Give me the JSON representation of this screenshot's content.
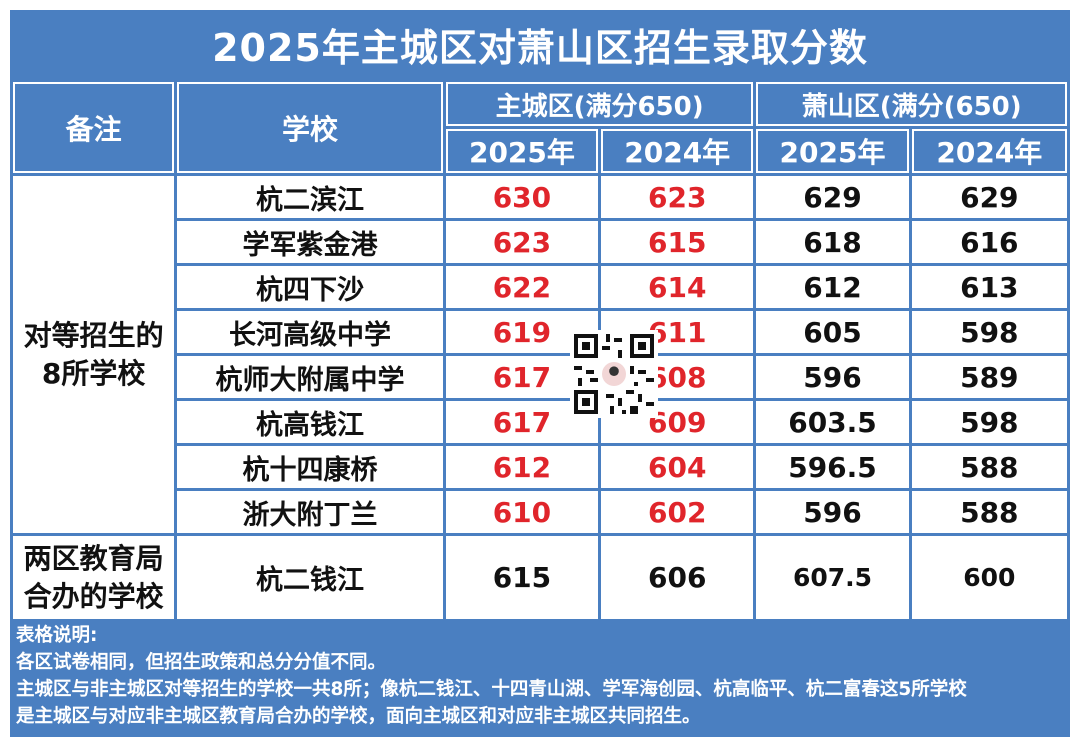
{
  "title": "2025年主城区对萧山区招生录取分数",
  "headers": {
    "note": "备注",
    "school": "学校",
    "zone_a": "主城区(满分650)",
    "zone_b": "萧山区(满分(650)",
    "year_2025": "2025年",
    "year_2024": "2024年"
  },
  "group1_note": [
    "对等招生的",
    "8所学校"
  ],
  "group2_note": [
    "两区教育局",
    "合办的学校"
  ],
  "rows": [
    {
      "school": "杭二滨江",
      "a2025": "630",
      "a2024": "623",
      "b2025": "629",
      "b2024": "629"
    },
    {
      "school": "学军紫金港",
      "a2025": "623",
      "a2024": "615",
      "b2025": "618",
      "b2024": "616"
    },
    {
      "school": "杭四下沙",
      "a2025": "622",
      "a2024": "614",
      "b2025": "612",
      "b2024": "613"
    },
    {
      "school": "长河高级中学",
      "a2025": "619",
      "a2024": "611",
      "b2025": "605",
      "b2024": "598"
    },
    {
      "school": "杭师大附属中学",
      "a2025": "617",
      "a2024": "608",
      "b2025": "596",
      "b2024": "589"
    },
    {
      "school": "杭高钱江",
      "a2025": "617",
      "a2024": "609",
      "b2025": "603.5",
      "b2024": "598"
    },
    {
      "school": "杭十四康桥",
      "a2025": "612",
      "a2024": "604",
      "b2025": "596.5",
      "b2024": "588"
    },
    {
      "school": "浙大附丁兰",
      "a2025": "610",
      "a2024": "602",
      "b2025": "596",
      "b2024": "588"
    }
  ],
  "last_row": {
    "school": "杭二钱江",
    "a2025": "615",
    "a2024": "606",
    "b2025": "607.5",
    "b2024": "600"
  },
  "footer": [
    "表格说明:",
    "各区试卷相同，但招生政策和总分分值不同。",
    "主城区与非主城区对等招生的学校一共8所；像杭二钱江、十四青山湖、学军海创园、杭高临平、杭二富春这5所学校",
    "是主城区与对应非主城区教育局合办的学校，面向主城区和对应非主城区共同招生。"
  ],
  "colors": {
    "header_bg": "#4a7fc1",
    "highlight": "#e0252b"
  }
}
